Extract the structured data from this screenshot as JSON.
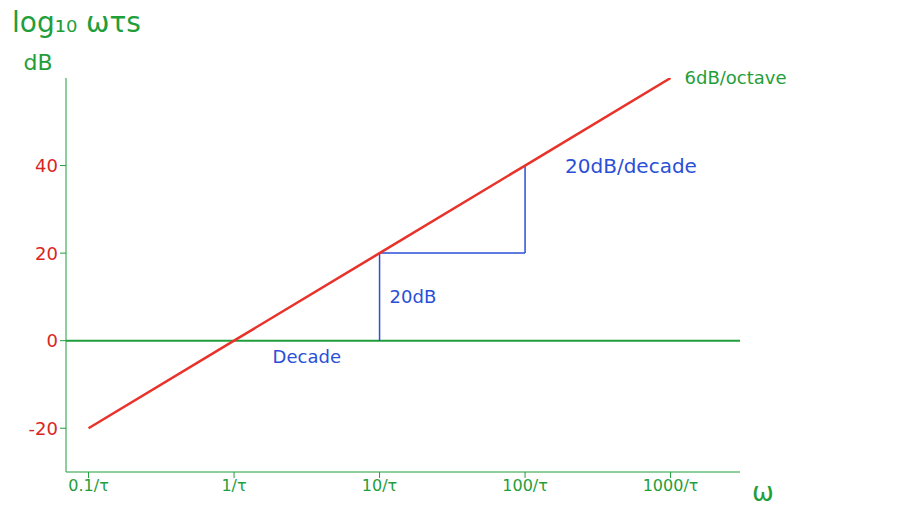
{
  "chart_data": {
    "type": "line",
    "title": "log₁₀ ωτs",
    "x_label": "ω",
    "y_label": "dB",
    "log": "x",
    "grid": false,
    "x": [
      0.1,
      1,
      10,
      100,
      1000
    ],
    "values": [
      -20,
      0,
      20,
      40,
      60
    ],
    "color": "#e8322a",
    "line_style": "solid",
    "xlim": [
      0.07,
      3000
    ],
    "xticks": [
      {
        "value": 0.1,
        "label": "0.1/τ"
      },
      {
        "value": 1,
        "label": "1/τ"
      },
      {
        "value": 10,
        "label": "10/τ"
      },
      {
        "value": 100,
        "label": "100/τ"
      },
      {
        "value": 1000,
        "label": "1000/τ"
      }
    ],
    "ylim": [
      -30,
      60
    ],
    "yticks": [
      -20,
      0,
      20,
      40
    ],
    "annotations": [
      "20dB",
      "Decade",
      "20dB/decade",
      "6dB/octave"
    ]
  }
}
